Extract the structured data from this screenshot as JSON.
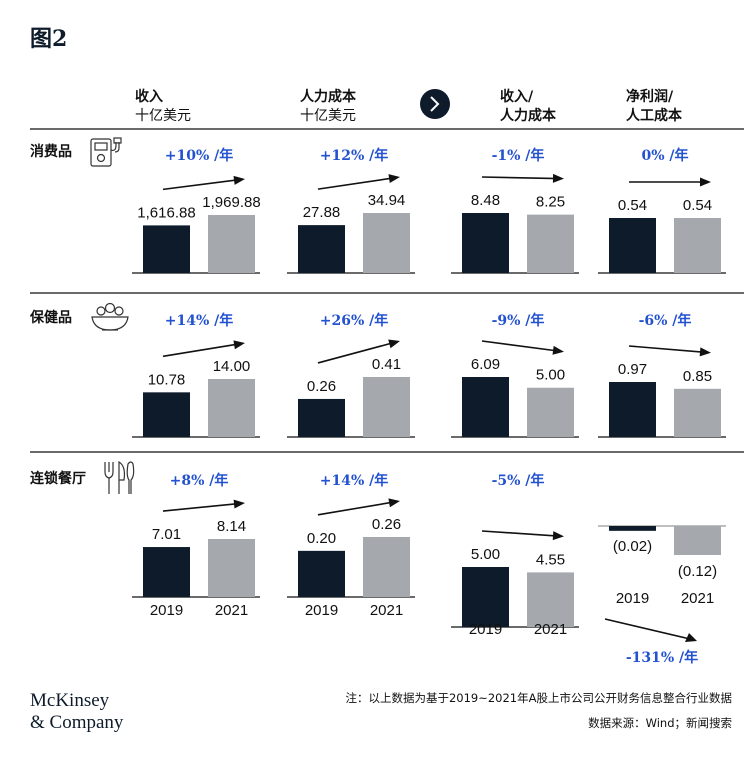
{
  "figure": {
    "title": "图2"
  },
  "headers": [
    {
      "line1": "收入",
      "line2": "十亿美元"
    },
    {
      "line1": "人力成本",
      "line2": "十亿美元"
    },
    {
      "line1": "收入/",
      "line2": "人力成本"
    },
    {
      "line1": "净利润/",
      "line2": "人工成本"
    }
  ],
  "rows": [
    {
      "label": "消费品",
      "icon": "phone-icon"
    },
    {
      "label": "保健品",
      "icon": "salad-bowl-icon"
    },
    {
      "label": "连锁餐厅",
      "icon": "cutlery-icon"
    }
  ],
  "footer": {
    "note": "注：以上数据为基于2019~2021年A股上市公司公开财务信息整合行业数据",
    "source": "数据来源：Wind；新闻搜索",
    "logo_line1": "McKinsey",
    "logo_line2": "& Company"
  },
  "colors": {
    "y2019": "#0d1b2a",
    "y2021": "#a5a9ae",
    "growth": "#2251d1",
    "divider": "#111111"
  },
  "chart_data": {
    "type": "bar",
    "categories": [
      "2019",
      "2021"
    ],
    "panels": [
      {
        "row": 0,
        "col": 0,
        "values": [
          1616.88,
          1969.88
        ],
        "labels": [
          "1,616.88",
          "1,969.88"
        ],
        "growth": "+10% /年"
      },
      {
        "row": 0,
        "col": 1,
        "values": [
          27.88,
          34.94
        ],
        "labels": [
          "27.88",
          "34.94"
        ],
        "growth": "+12% /年"
      },
      {
        "row": 0,
        "col": 2,
        "values": [
          8.48,
          8.25
        ],
        "labels": [
          "8.48",
          "8.25"
        ],
        "growth": "-1% /年"
      },
      {
        "row": 0,
        "col": 3,
        "values": [
          0.54,
          0.54
        ],
        "labels": [
          "0.54",
          "0.54"
        ],
        "growth": "0% /年"
      },
      {
        "row": 1,
        "col": 0,
        "values": [
          10.78,
          14.0
        ],
        "labels": [
          "10.78",
          "14.00"
        ],
        "growth": "+14% /年"
      },
      {
        "row": 1,
        "col": 1,
        "values": [
          0.26,
          0.41
        ],
        "labels": [
          "0.26",
          "0.41"
        ],
        "growth": "+26% /年"
      },
      {
        "row": 1,
        "col": 2,
        "values": [
          6.09,
          5.0
        ],
        "labels": [
          "6.09",
          "5.00"
        ],
        "growth": "-9% /年"
      },
      {
        "row": 1,
        "col": 3,
        "values": [
          0.97,
          0.85
        ],
        "labels": [
          "0.97",
          "0.85"
        ],
        "growth": "-6% /年"
      },
      {
        "row": 2,
        "col": 0,
        "values": [
          7.01,
          8.14
        ],
        "labels": [
          "7.01",
          "8.14"
        ],
        "growth": "+8% /年"
      },
      {
        "row": 2,
        "col": 1,
        "values": [
          0.2,
          0.26
        ],
        "labels": [
          "0.20",
          "0.26"
        ],
        "growth": "+14% /年"
      },
      {
        "row": 2,
        "col": 2,
        "values": [
          5.0,
          4.55
        ],
        "labels": [
          "5.00",
          "4.55"
        ],
        "growth": "-5% /年"
      },
      {
        "row": 2,
        "col": 3,
        "values": [
          -0.02,
          -0.12
        ],
        "labels": [
          "(0.02)",
          "(0.12)"
        ],
        "growth": "-131% /年"
      }
    ]
  }
}
